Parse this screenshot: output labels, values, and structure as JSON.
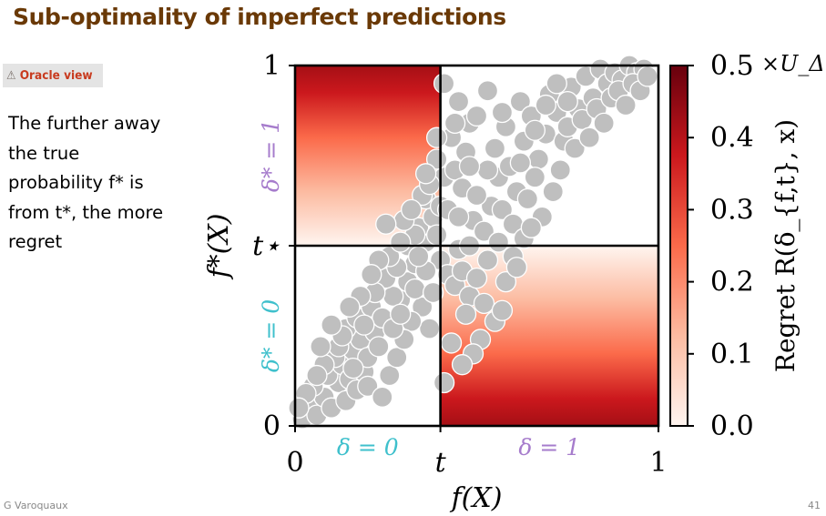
{
  "slide": {
    "title": "Sub-optimality of imperfect predictions",
    "badge_icon": "warning-icon",
    "badge_label": "Oracle view",
    "body_lines": [
      "The further away",
      "the true",
      "probability f* is",
      "from t*, the more",
      "regret"
    ],
    "footer_author": "G Varoquaux",
    "page_number": "41"
  },
  "chart_data": {
    "type": "scatter",
    "xlabel": "f(X)",
    "ylabel": "f*(X)",
    "xlim": [
      0,
      1
    ],
    "ylim": [
      0,
      1
    ],
    "threshold_t": 0.4,
    "threshold_t_star": 0.5,
    "x_ticks": [
      {
        "v": 0,
        "label": "0"
      },
      {
        "v": 0.4,
        "label": "t"
      },
      {
        "v": 1,
        "label": "1"
      }
    ],
    "y_ticks": [
      {
        "v": 0,
        "label": "0"
      },
      {
        "v": 0.5,
        "label": "t*"
      },
      {
        "v": 1,
        "label": "1"
      }
    ],
    "region_labels": [
      {
        "text": "δ = 0",
        "axis": "x",
        "center": 0.2,
        "color": "#3fc0cc"
      },
      {
        "text": "δ = 1",
        "axis": "x",
        "center": 0.7,
        "color": "#a67ccc"
      },
      {
        "text": "δ* = 0",
        "axis": "y",
        "center": 0.25,
        "color": "#3fc0cc"
      },
      {
        "text": "δ* = 1",
        "axis": "y",
        "center": 0.75,
        "color": "#a67ccc"
      }
    ],
    "colorbar": {
      "label": "Regret R(δ_{f,t}, x)",
      "multiplier": "×U_Δ",
      "min": 0.0,
      "max": 0.5,
      "ticks": [
        "0.0",
        "0.1",
        "0.2",
        "0.3",
        "0.4",
        "0.5"
      ],
      "colors": [
        "#fff5f0",
        "#fcbba1",
        "#fb6a4a",
        "#cb181d",
        "#67000d"
      ]
    },
    "points": [
      [
        0.02,
        0.02
      ],
      [
        0.04,
        0.06
      ],
      [
        0.06,
        0.03
      ],
      [
        0.08,
        0.08
      ],
      [
        0.1,
        0.05
      ],
      [
        0.12,
        0.12
      ],
      [
        0.14,
        0.07
      ],
      [
        0.05,
        0.11
      ],
      [
        0.09,
        0.14
      ],
      [
        0.13,
        0.17
      ],
      [
        0.15,
        0.13
      ],
      [
        0.17,
        0.1
      ],
      [
        0.19,
        0.15
      ],
      [
        0.11,
        0.19
      ],
      [
        0.16,
        0.21
      ],
      [
        0.18,
        0.24
      ],
      [
        0.2,
        0.19
      ],
      [
        0.22,
        0.26
      ],
      [
        0.14,
        0.27
      ],
      [
        0.17,
        0.3
      ],
      [
        0.21,
        0.33
      ],
      [
        0.24,
        0.3
      ],
      [
        0.23,
        0.22
      ],
      [
        0.26,
        0.14
      ],
      [
        0.28,
        0.19
      ],
      [
        0.29,
        0.35
      ],
      [
        0.31,
        0.4
      ],
      [
        0.33,
        0.45
      ],
      [
        0.36,
        0.51
      ],
      [
        0.34,
        0.55
      ],
      [
        0.38,
        0.58
      ],
      [
        0.36,
        0.63
      ],
      [
        0.4,
        0.61
      ],
      [
        0.41,
        0.69
      ],
      [
        0.39,
        0.74
      ],
      [
        0.44,
        0.71
      ],
      [
        0.43,
        0.8
      ],
      [
        0.47,
        0.76
      ],
      [
        0.48,
        0.84
      ],
      [
        0.46,
        0.66
      ],
      [
        0.49,
        0.57
      ],
      [
        0.52,
        0.54
      ],
      [
        0.54,
        0.61
      ],
      [
        0.56,
        0.69
      ],
      [
        0.55,
        0.77
      ],
      [
        0.58,
        0.83
      ],
      [
        0.59,
        0.72
      ],
      [
        0.61,
        0.65
      ],
      [
        0.63,
        0.79
      ],
      [
        0.62,
        0.9
      ],
      [
        0.65,
        0.86
      ],
      [
        0.67,
        0.74
      ],
      [
        0.69,
        0.81
      ],
      [
        0.7,
        0.92
      ],
      [
        0.72,
        0.87
      ],
      [
        0.74,
        0.79
      ],
      [
        0.76,
        0.94
      ],
      [
        0.78,
        0.88
      ],
      [
        0.8,
        0.97
      ],
      [
        0.82,
        0.91
      ],
      [
        0.84,
        0.99
      ],
      [
        0.86,
        0.95
      ],
      [
        0.88,
        0.98
      ],
      [
        0.9,
        0.96
      ],
      [
        0.92,
        1.0
      ],
      [
        0.94,
        0.98
      ],
      [
        0.96,
        0.99
      ],
      [
        0.4,
        0.46
      ],
      [
        0.42,
        0.42
      ],
      [
        0.44,
        0.39
      ],
      [
        0.46,
        0.43
      ],
      [
        0.48,
        0.36
      ],
      [
        0.5,
        0.41
      ],
      [
        0.47,
        0.31
      ],
      [
        0.52,
        0.34
      ],
      [
        0.55,
        0.29
      ],
      [
        0.57,
        0.32
      ],
      [
        0.51,
        0.24
      ],
      [
        0.49,
        0.2
      ],
      [
        0.46,
        0.17
      ],
      [
        0.43,
        0.23
      ],
      [
        0.41,
        0.12
      ],
      [
        0.37,
        0.27
      ],
      [
        0.35,
        0.33
      ],
      [
        0.32,
        0.29
      ],
      [
        0.3,
        0.24
      ],
      [
        0.27,
        0.36
      ],
      [
        0.25,
        0.41
      ],
      [
        0.28,
        0.44
      ],
      [
        0.31,
        0.5
      ],
      [
        0.33,
        0.53
      ],
      [
        0.3,
        0.57
      ],
      [
        0.35,
        0.64
      ],
      [
        0.37,
        0.67
      ],
      [
        0.39,
        0.53
      ],
      [
        0.42,
        0.6
      ],
      [
        0.45,
        0.58
      ],
      [
        0.5,
        0.64
      ],
      [
        0.53,
        0.71
      ],
      [
        0.57,
        0.6
      ],
      [
        0.6,
        0.56
      ],
      [
        0.63,
        0.52
      ],
      [
        0.6,
        0.47
      ],
      [
        0.64,
        0.63
      ],
      [
        0.66,
        0.69
      ],
      [
        0.68,
        0.58
      ],
      [
        0.71,
        0.65
      ],
      [
        0.73,
        0.71
      ],
      [
        0.75,
        0.83
      ],
      [
        0.77,
        0.77
      ],
      [
        0.79,
        0.85
      ],
      [
        0.81,
        0.8
      ],
      [
        0.83,
        0.88
      ],
      [
        0.85,
        0.84
      ],
      [
        0.87,
        0.91
      ],
      [
        0.89,
        0.93
      ],
      [
        0.91,
        0.89
      ],
      [
        0.93,
        0.95
      ],
      [
        0.95,
        0.93
      ],
      [
        0.97,
        0.97
      ],
      [
        0.08,
        0.17
      ],
      [
        0.12,
        0.22
      ],
      [
        0.16,
        0.16
      ],
      [
        0.2,
        0.11
      ],
      [
        0.24,
        0.08
      ],
      [
        0.27,
        0.27
      ],
      [
        0.19,
        0.28
      ],
      [
        0.22,
        0.37
      ],
      [
        0.26,
        0.47
      ],
      [
        0.29,
        0.31
      ],
      [
        0.33,
        0.38
      ],
      [
        0.36,
        0.43
      ],
      [
        0.34,
        0.47
      ],
      [
        0.38,
        0.37
      ],
      [
        0.45,
        0.49
      ],
      [
        0.48,
        0.5
      ],
      [
        0.53,
        0.46
      ],
      [
        0.56,
        0.51
      ],
      [
        0.58,
        0.4
      ],
      [
        0.61,
        0.44
      ],
      [
        0.65,
        0.55
      ],
      [
        0.62,
        0.73
      ],
      [
        0.66,
        0.82
      ],
      [
        0.69,
        0.89
      ],
      [
        0.72,
        0.95
      ],
      [
        0.75,
        0.9
      ],
      [
        0.57,
        0.87
      ],
      [
        0.53,
        0.93
      ],
      [
        0.5,
        0.86
      ],
      [
        0.45,
        0.9
      ],
      [
        0.41,
        0.95
      ],
      [
        0.48,
        0.72
      ],
      [
        0.44,
        0.84
      ],
      [
        0.39,
        0.8
      ],
      [
        0.36,
        0.7
      ],
      [
        0.32,
        0.6
      ],
      [
        0.29,
        0.51
      ],
      [
        0.25,
        0.56
      ],
      [
        0.23,
        0.46
      ],
      [
        0.21,
        0.42
      ],
      [
        0.18,
        0.36
      ],
      [
        0.15,
        0.33
      ],
      [
        0.13,
        0.25
      ],
      [
        0.1,
        0.28
      ],
      [
        0.07,
        0.22
      ],
      [
        0.06,
        0.14
      ],
      [
        0.03,
        0.09
      ],
      [
        0.01,
        0.05
      ]
    ]
  }
}
